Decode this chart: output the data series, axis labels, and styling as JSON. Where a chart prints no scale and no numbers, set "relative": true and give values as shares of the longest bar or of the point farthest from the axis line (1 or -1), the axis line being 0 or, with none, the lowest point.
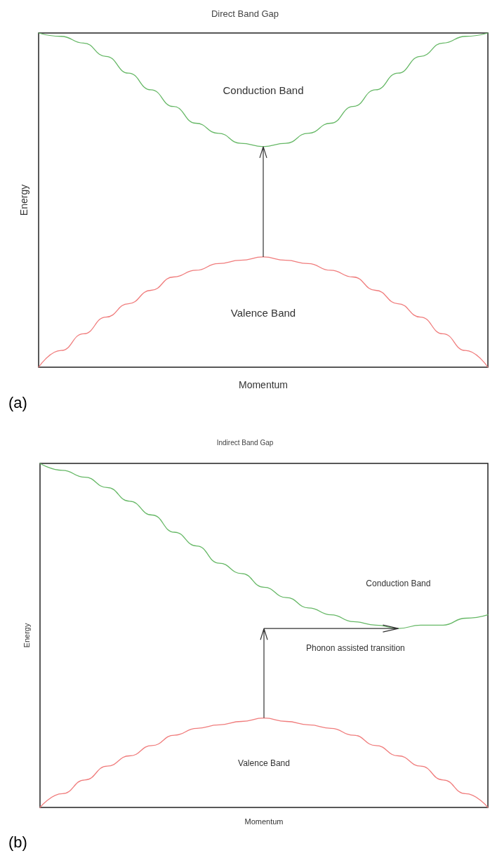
{
  "chart_data": [
    {
      "type": "line",
      "title": "Direct Band Gap",
      "xlabel": "Momentum",
      "ylabel": "Energy",
      "relative": true,
      "categories": [
        null,
        null,
        null,
        null,
        null,
        null,
        null,
        null,
        null,
        null,
        null,
        null,
        null,
        null,
        null,
        null,
        null,
        null,
        null,
        null,
        null
      ],
      "series": [
        {
          "color": "#66b866",
          "values": [
            1,
            0.99,
            0.97,
            0.93,
            0.88,
            0.83,
            0.78,
            0.73,
            0.7,
            0.67,
            0.66,
            0.67,
            0.7,
            0.73,
            0.78,
            0.83,
            0.88,
            0.93,
            0.97,
            0.99,
            1
          ]
        },
        {
          "color": "#f07c7c",
          "values": [
            0,
            0.05,
            0.1,
            0.15,
            0.19,
            0.23,
            0.27,
            0.29,
            0.31,
            0.32,
            0.33,
            0.32,
            0.31,
            0.29,
            0.27,
            0.23,
            0.19,
            0.15,
            0.1,
            0.05,
            0
          ]
        }
      ],
      "annotations": [
        "Conduction Band",
        "Valence Band",
        "(a)"
      ]
    },
    {
      "type": "line",
      "title": "Indirect Band Gap",
      "xlabel": "Momentum",
      "ylabel": "Energy",
      "relative": true,
      "categories": [
        null,
        null,
        null,
        null,
        null,
        null,
        null,
        null,
        null,
        null,
        null,
        null,
        null,
        null,
        null,
        null,
        null,
        null,
        null,
        null,
        null
      ],
      "series": [
        {
          "color": "#66b866",
          "values": [
            1,
            0.98,
            0.96,
            0.93,
            0.89,
            0.85,
            0.8,
            0.76,
            0.71,
            0.68,
            0.64,
            0.61,
            0.58,
            0.56,
            0.54,
            0.53,
            0.52,
            0.53,
            0.53,
            0.55,
            0.56
          ]
        },
        {
          "color": "#f07c7c",
          "values": [
            0,
            0.04,
            0.08,
            0.12,
            0.15,
            0.18,
            0.21,
            0.23,
            0.24,
            0.25,
            0.26,
            0.25,
            0.24,
            0.23,
            0.21,
            0.18,
            0.15,
            0.12,
            0.08,
            0.04,
            0
          ]
        }
      ],
      "annotations": [
        "Conduction Band",
        "Valence Band",
        "Phonon assisted transition",
        "(b)"
      ]
    }
  ]
}
